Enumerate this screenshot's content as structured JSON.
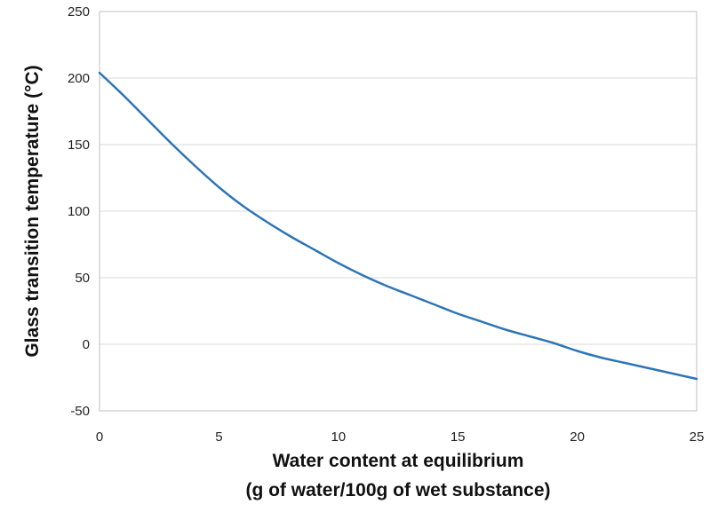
{
  "chart_data": {
    "type": "line",
    "xlabel": [
      "Water content at equilibrium",
      "(g of water/100g of wet substance)"
    ],
    "ylabel": "Glass transition temperature (°C)",
    "xlim": [
      0,
      25
    ],
    "ylim": [
      -50,
      250
    ],
    "xticks": [
      0,
      5,
      10,
      15,
      20,
      25
    ],
    "yticks": [
      -50,
      0,
      50,
      100,
      150,
      200,
      250
    ],
    "grid": "horizontal",
    "series": [
      {
        "color": "#2e75b6",
        "x": [
          0,
          1,
          2,
          3,
          4,
          5,
          6,
          7,
          8,
          9,
          10,
          11,
          12,
          13,
          14,
          15,
          16,
          17,
          18,
          19,
          20,
          21,
          22,
          23,
          24,
          25
        ],
        "y": [
          204,
          187,
          169,
          151,
          134,
          118,
          104,
          92,
          81,
          71,
          61,
          52,
          44,
          37,
          30,
          23,
          17,
          11,
          6,
          1,
          -5,
          -10,
          -14,
          -18,
          -22,
          -26
        ]
      }
    ]
  }
}
